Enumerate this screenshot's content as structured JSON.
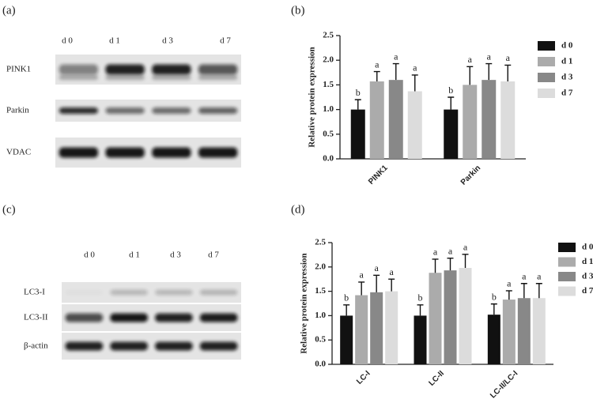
{
  "panels": [
    "(a)",
    "(b)",
    "(c)",
    "(d)"
  ],
  "blots": [
    {
      "lanes": [
        "d 0",
        "d 1",
        "d 3",
        "d 7"
      ],
      "rows": [
        "PINK1",
        "Parkin",
        "VDAC"
      ]
    },
    {
      "lanes": [
        "d 0",
        "d 1",
        "d 3",
        "d 7"
      ],
      "rows": [
        "LC3-I",
        "LC3-II",
        "β-actin"
      ]
    }
  ],
  "chart_data": [
    {
      "type": "bar",
      "y_label": "Relative protein expression",
      "categories": [
        "PINK1",
        "Parkin"
      ],
      "ylim": [
        0,
        2.5
      ],
      "yticks": [
        {
          "value": 0,
          "label": "0.0"
        },
        0.5,
        {
          "value": 1,
          "label": "1.0"
        },
        1.5,
        {
          "value": 2,
          "label": "2.0"
        },
        2.5
      ],
      "series": [
        {
          "name": "d 0",
          "color": "#111111",
          "values": [
            1.0,
            1.0
          ],
          "errors": [
            0.2,
            0.25
          ],
          "labels": [
            "b",
            "b"
          ]
        },
        {
          "name": "d 1",
          "color": "#ababab",
          "values": [
            1.57,
            1.5
          ],
          "errors": [
            0.2,
            0.37
          ],
          "labels": [
            "a",
            "a"
          ]
        },
        {
          "name": "d 3",
          "color": "#888888",
          "values": [
            1.6,
            1.6
          ],
          "errors": [
            0.33,
            0.33
          ],
          "labels": [
            "a",
            "a"
          ]
        },
        {
          "name": "d 7",
          "color": "#dcdcdc",
          "values": [
            1.37,
            1.57
          ],
          "errors": [
            0.33,
            0.33
          ],
          "labels": [
            "a",
            "a"
          ]
        }
      ]
    },
    {
      "type": "bar",
      "y_label": "Relative protein expression",
      "categories": [
        "LC-I",
        "LC-II",
        "LC-II/LC-I"
      ],
      "ylim": [
        0,
        2.5
      ],
      "yticks": [
        {
          "value": 0,
          "label": "0.0"
        },
        0.5,
        {
          "value": 1,
          "label": "1.0"
        },
        1.5,
        {
          "value": 2,
          "label": "2.0"
        },
        2.5
      ],
      "series": [
        {
          "name": "d 0",
          "color": "#111111",
          "values": [
            1.0,
            1.0,
            1.02
          ],
          "errors": [
            0.22,
            0.22,
            0.22
          ],
          "labels": [
            "b",
            "b",
            "b"
          ]
        },
        {
          "name": "d 1",
          "color": "#ababab",
          "values": [
            1.42,
            1.88,
            1.33
          ],
          "errors": [
            0.27,
            0.28,
            0.18
          ],
          "labels": [
            "a",
            "a",
            "a"
          ]
        },
        {
          "name": "d 3",
          "color": "#888888",
          "values": [
            1.48,
            1.93,
            1.36
          ],
          "errors": [
            0.35,
            0.25,
            0.3
          ],
          "labels": [
            "a",
            "a",
            "a"
          ]
        },
        {
          "name": "d 7",
          "color": "#dcdcdc",
          "values": [
            1.5,
            1.98,
            1.36
          ],
          "errors": [
            0.25,
            0.28,
            0.3
          ],
          "labels": [
            "a",
            "a",
            "a"
          ]
        }
      ]
    }
  ]
}
